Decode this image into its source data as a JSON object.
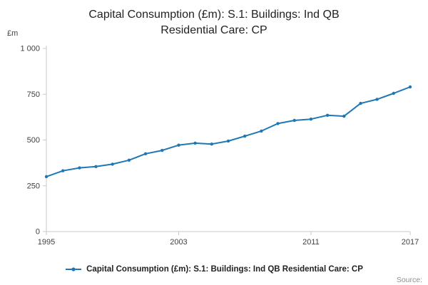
{
  "header": {
    "title_line1": "Capital Consumption (£m): S.1: Buildings: Ind QB",
    "title_line2": "Residential Care: CP"
  },
  "y_unit_label": "£m",
  "legend": {
    "label": "Capital Consumption (£m): S.1: Buildings: Ind QB Residential Care: CP"
  },
  "source_label": "Source:",
  "colors": {
    "line": "#1f77b4",
    "axis": "#c8c8c8",
    "tick_text": "#414042"
  },
  "chart_data": {
    "type": "line",
    "title": "Capital Consumption (£m): S.1: Buildings: Ind QB Residential Care: CP",
    "ylabel": "£m",
    "xlabel": "",
    "x": [
      1995,
      1996,
      1997,
      1998,
      1999,
      2000,
      2001,
      2002,
      2003,
      2004,
      2005,
      2006,
      2007,
      2008,
      2009,
      2010,
      2011,
      2012,
      2013,
      2014,
      2015,
      2016,
      2017
    ],
    "values": [
      300,
      332,
      348,
      355,
      368,
      390,
      425,
      443,
      472,
      483,
      478,
      494,
      521,
      549,
      590,
      607,
      614,
      635,
      630,
      700,
      722,
      755,
      790
    ],
    "ylim": [
      0,
      1000
    ],
    "yticks": [
      0,
      250,
      500,
      750,
      1000
    ],
    "xticks": [
      1995,
      2003,
      2011,
      2017
    ],
    "grid": false,
    "legend_position": "bottom",
    "marker": "dot"
  }
}
